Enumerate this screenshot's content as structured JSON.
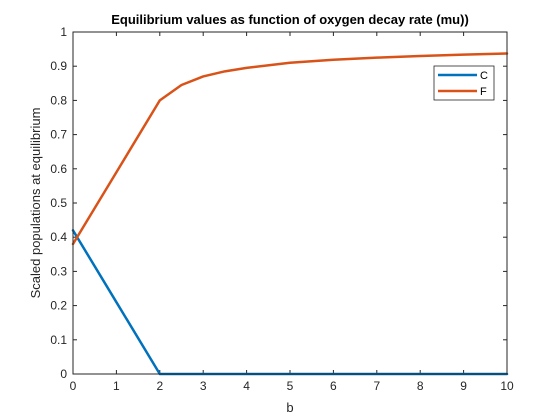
{
  "chart_data": {
    "type": "line",
    "title": "Equilibrium values as function of oxygen decay rate (mu))",
    "xlabel": "b",
    "ylabel": "Scaled populations at equilibrium",
    "xlim": [
      0,
      10
    ],
    "ylim": [
      0,
      1
    ],
    "xticks": [
      "0",
      "1",
      "2",
      "3",
      "4",
      "5",
      "6",
      "7",
      "8",
      "9",
      "10"
    ],
    "yticks": [
      "0",
      "0.1",
      "0.2",
      "0.3",
      "0.4",
      "0.5",
      "0.6",
      "0.7",
      "0.8",
      "0.9",
      "1"
    ],
    "grid": false,
    "legend_position": "top-right",
    "series": [
      {
        "name": "C",
        "color": "#0072BD",
        "x": [
          0,
          1,
          2,
          3,
          4,
          5,
          6,
          7,
          8,
          9,
          10
        ],
        "y": [
          0.42,
          0.21,
          0,
          0,
          0,
          0,
          0,
          0,
          0,
          0,
          0
        ]
      },
      {
        "name": "F",
        "color": "#D95319",
        "x": [
          0,
          1,
          2,
          2.5,
          3,
          3.5,
          4,
          5,
          6,
          7,
          8,
          9,
          10
        ],
        "y": [
          0.38,
          0.59,
          0.8,
          0.845,
          0.87,
          0.885,
          0.895,
          0.91,
          0.919,
          0.925,
          0.93,
          0.934,
          0.937
        ]
      }
    ]
  }
}
